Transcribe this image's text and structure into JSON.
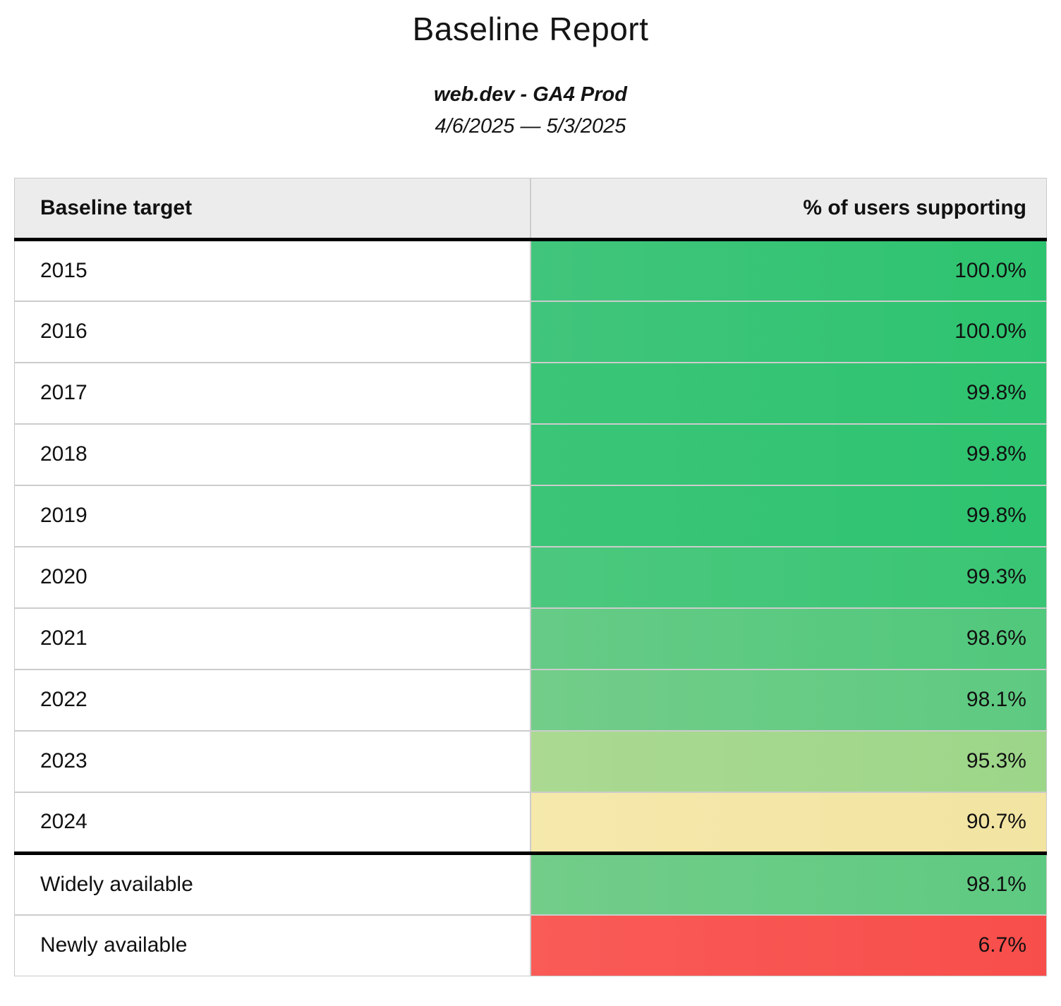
{
  "page": {
    "title": "Baseline Report",
    "subtitle": "web.dev - GA4 Prod",
    "date_range": "4/6/2025 — 5/3/2025"
  },
  "table": {
    "columns": [
      "Baseline target",
      "% of users supporting"
    ],
    "rows": [
      {
        "label": "2015",
        "value": "100.0%",
        "color_left": "#41c57c",
        "color_right": "#2dc46f",
        "section_start": false
      },
      {
        "label": "2016",
        "value": "100.0%",
        "color_left": "#41c57c",
        "color_right": "#2dc46f",
        "section_start": false
      },
      {
        "label": "2017",
        "value": "99.8%",
        "color_left": "#3bc577",
        "color_right": "#2ec470",
        "section_start": false
      },
      {
        "label": "2018",
        "value": "99.8%",
        "color_left": "#3bc577",
        "color_right": "#2ec470",
        "section_start": false
      },
      {
        "label": "2019",
        "value": "99.8%",
        "color_left": "#3bc577",
        "color_right": "#2ec470",
        "section_start": false
      },
      {
        "label": "2020",
        "value": "99.3%",
        "color_left": "#4cc87e",
        "color_right": "#39c574",
        "section_start": false
      },
      {
        "label": "2021",
        "value": "98.6%",
        "color_left": "#66cb86",
        "color_right": "#51c87c",
        "section_start": false
      },
      {
        "label": "2022",
        "value": "98.1%",
        "color_left": "#72cd89",
        "color_right": "#5eca81",
        "section_start": false
      },
      {
        "label": "2023",
        "value": "95.3%",
        "color_left": "#abd992",
        "color_right": "#9cd689",
        "section_start": false
      },
      {
        "label": "2024",
        "value": "90.7%",
        "color_left": "#f5e8ab",
        "color_right": "#f2e4a1",
        "section_start": false
      },
      {
        "label": "Widely available",
        "value": "98.1%",
        "color_left": "#72cd89",
        "color_right": "#5eca81",
        "section_start": true
      },
      {
        "label": "Newly available",
        "value": "6.7%",
        "color_left": "#f95b57",
        "color_right": "#f84e4b",
        "section_start": false
      }
    ]
  },
  "chart_data": {
    "type": "table",
    "title": "Baseline Report",
    "subtitle": "web.dev - GA4 Prod",
    "date_range": "4/6/2025 — 5/3/2025",
    "columns": [
      "Baseline target",
      "% of users supporting"
    ],
    "categories": [
      "2015",
      "2016",
      "2017",
      "2018",
      "2019",
      "2020",
      "2021",
      "2022",
      "2023",
      "2024",
      "Widely available",
      "Newly available"
    ],
    "values": [
      100.0,
      100.0,
      99.8,
      99.8,
      99.8,
      99.3,
      98.6,
      98.1,
      95.3,
      90.7,
      98.1,
      6.7
    ],
    "value_unit": "%",
    "layout_hints": {
      "value_alignment": "right",
      "color_scale": "support percentage: high=green, mid=yellow, low=red",
      "section_break_before": "Widely available"
    },
    "status_colors": {
      "green_high": "#2dc46f",
      "green_light": "#9cd689",
      "yellow": "#f2e4a1",
      "red": "#f84e4b",
      "header_bg": "#ececec"
    }
  }
}
